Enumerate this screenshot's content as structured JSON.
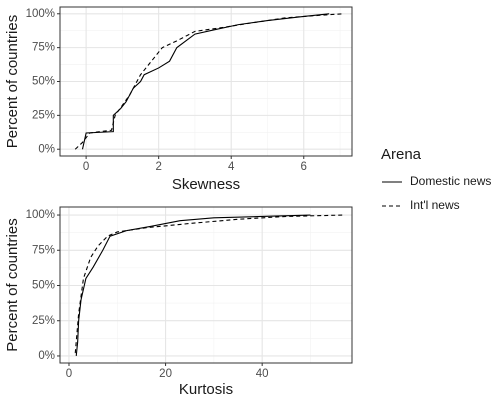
{
  "chart_data": [
    {
      "type": "line",
      "x_label": "Skewness",
      "y_label": "Percent of countries",
      "legend_title": "Arena",
      "xlim": [
        -0.72,
        7.33
      ],
      "xticks": [
        0,
        2,
        4,
        6
      ],
      "xminor": [
        -1,
        1,
        3,
        5,
        7
      ],
      "ylim": [
        -5,
        105
      ],
      "yticks": [
        {
          "value": 0,
          "label": "0%"
        },
        {
          "value": 25,
          "label": "25%"
        },
        {
          "value": 50,
          "label": "50%"
        },
        {
          "value": 75,
          "label": "75%"
        },
        {
          "value": 100,
          "label": "100%"
        }
      ],
      "yminor": [
        12.5,
        37.5,
        62.5,
        87.5
      ],
      "grid": true,
      "legend": "right",
      "series": [
        {
          "name": "Domestic news",
          "color": "#000000",
          "dash": "solid",
          "x": [
            -0.1,
            0,
            0.75,
            0.75,
            0.95,
            1.1,
            1.3,
            1.5,
            1.6,
            2.0,
            2.3,
            2.5,
            3.0,
            3.5,
            4.2,
            5.0,
            6.0,
            6.7
          ],
          "values": [
            0,
            12,
            13,
            25,
            30,
            35,
            45,
            50,
            55,
            60,
            65,
            75,
            85,
            88,
            92,
            95,
            98,
            100
          ]
        },
        {
          "name": "Int'l news",
          "color": "#000000",
          "dash": "dashed",
          "x": [
            -0.3,
            -0.1,
            0.1,
            0.7,
            0.8,
            1.2,
            1.5,
            1.8,
            2.1,
            2.5,
            3.0,
            3.8,
            4.5,
            5.5,
            6.5,
            7.1
          ],
          "values": [
            0,
            5,
            12,
            14,
            25,
            40,
            55,
            65,
            75,
            80,
            87,
            90,
            93,
            97,
            99,
            100
          ]
        }
      ]
    },
    {
      "type": "line",
      "x_label": "Kurtosis",
      "y_label": "Percent of countries",
      "xlim": [
        -1.86,
        58.6
      ],
      "xticks": [
        0,
        20,
        40
      ],
      "xminor": [
        10,
        30,
        50
      ],
      "ylim": [
        -5,
        105.7
      ],
      "yticks": [
        {
          "value": 0,
          "label": "0%"
        },
        {
          "value": 25,
          "label": "25%"
        },
        {
          "value": 50,
          "label": "50%"
        },
        {
          "value": 75,
          "label": "75%"
        },
        {
          "value": 100,
          "label": "100%"
        }
      ],
      "yminor": [
        12.5,
        37.5,
        62.5,
        87.5
      ],
      "grid": true,
      "series": [
        {
          "color": "#000000",
          "dash": "solid",
          "x": [
            1.5,
            1.8,
            2,
            2.5,
            3.5,
            5,
            7,
            8.5,
            12,
            17,
            23,
            30,
            40,
            50
          ],
          "values": [
            0,
            10,
            25,
            40,
            55,
            63,
            75,
            85,
            89,
            92,
            96,
            98,
            99,
            100
          ]
        },
        {
          "color": "#000000",
          "dash": "dashed",
          "x": [
            1.3,
            2,
            3,
            4.5,
            6,
            8,
            10,
            16,
            25,
            35,
            45,
            57
          ],
          "values": [
            2,
            30,
            55,
            70,
            78,
            85,
            88,
            91,
            94,
            97,
            99,
            100
          ]
        }
      ]
    }
  ]
}
